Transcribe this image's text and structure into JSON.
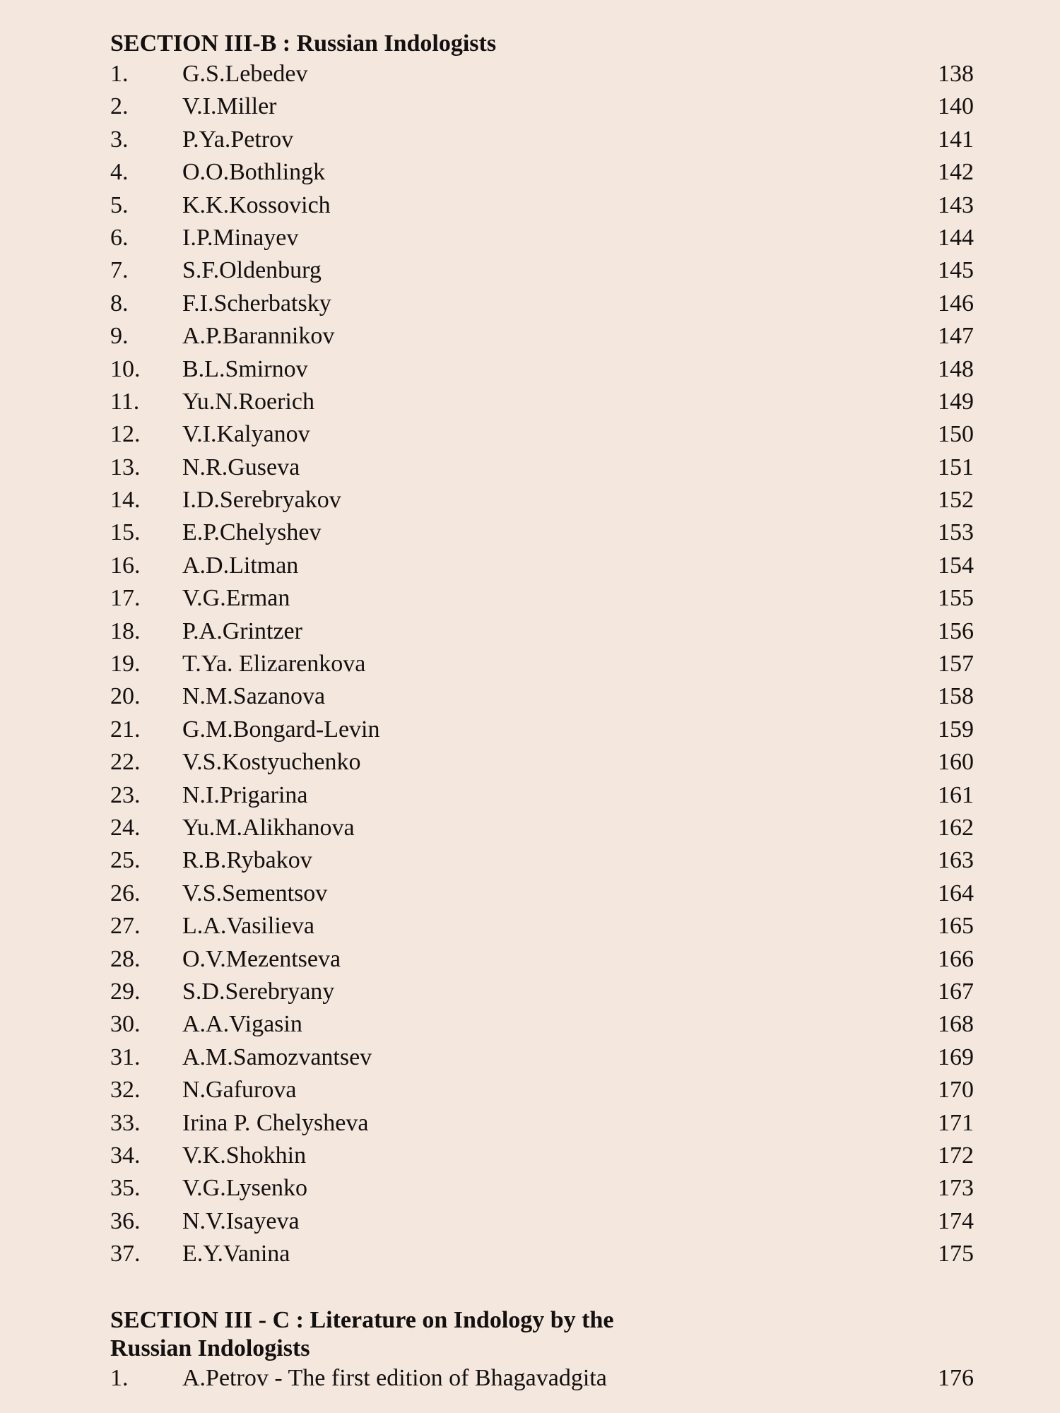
{
  "section_b": {
    "heading": "SECTION III-B : Russian Indologists",
    "items": [
      {
        "num": "1.",
        "name": "G.S.Lebedev",
        "page": "138"
      },
      {
        "num": "2.",
        "name": "V.I.Miller",
        "page": "140"
      },
      {
        "num": "3.",
        "name": "P.Ya.Petrov",
        "page": "141"
      },
      {
        "num": "4.",
        "name": "O.O.Bothlingk",
        "page": "142"
      },
      {
        "num": "5.",
        "name": "K.K.Kossovich",
        "page": "143"
      },
      {
        "num": "6.",
        "name": "I.P.Minayev",
        "page": "144"
      },
      {
        "num": "7.",
        "name": "S.F.Oldenburg",
        "page": "145"
      },
      {
        "num": "8.",
        "name": "F.I.Scherbatsky",
        "page": "146"
      },
      {
        "num": "9.",
        "name": "A.P.Barannikov",
        "page": "147"
      },
      {
        "num": "10.",
        "name": "B.L.Smirnov",
        "page": "148"
      },
      {
        "num": "11.",
        "name": "Yu.N.Roerich",
        "page": "149"
      },
      {
        "num": "12.",
        "name": "V.I.Kalyanov",
        "page": "150"
      },
      {
        "num": "13.",
        "name": "N.R.Guseva",
        "page": "151"
      },
      {
        "num": "14.",
        "name": "I.D.Serebryakov",
        "page": "152"
      },
      {
        "num": "15.",
        "name": "E.P.Chelyshev",
        "page": "153"
      },
      {
        "num": "16.",
        "name": "A.D.Litman",
        "page": "154"
      },
      {
        "num": "17.",
        "name": "V.G.Erman",
        "page": "155"
      },
      {
        "num": "18.",
        "name": "P.A.Grintzer",
        "page": "156"
      },
      {
        "num": "19.",
        "name": "T.Ya. Elizarenkova",
        "page": "157"
      },
      {
        "num": "20.",
        "name": "N.M.Sazanova",
        "page": "158"
      },
      {
        "num": "21.",
        "name": "G.M.Bongard-Levin",
        "page": "159"
      },
      {
        "num": "22.",
        "name": "V.S.Kostyuchenko",
        "page": "160"
      },
      {
        "num": "23.",
        "name": "N.I.Prigarina",
        "page": "161"
      },
      {
        "num": "24.",
        "name": "Yu.M.Alikhanova",
        "page": "162"
      },
      {
        "num": "25.",
        "name": "R.B.Rybakov",
        "page": "163"
      },
      {
        "num": "26.",
        "name": "V.S.Sementsov",
        "page": "164"
      },
      {
        "num": "27.",
        "name": "L.A.Vasilieva",
        "page": "165"
      },
      {
        "num": "28.",
        "name": "O.V.Mezentseva",
        "page": "166"
      },
      {
        "num": "29.",
        "name": "S.D.Serebryany",
        "page": "167"
      },
      {
        "num": "30.",
        "name": "A.A.Vigasin",
        "page": "168"
      },
      {
        "num": "31.",
        "name": "A.M.Samozvantsev",
        "page": "169"
      },
      {
        "num": "32.",
        "name": "N.Gafurova",
        "page": "170"
      },
      {
        "num": "33.",
        "name": "Irina P. Chelysheva",
        "page": "171"
      },
      {
        "num": "34.",
        "name": "V.K.Shokhin",
        "page": "172"
      },
      {
        "num": "35.",
        "name": "V.G.Lysenko",
        "page": "173"
      },
      {
        "num": "36.",
        "name": "N.V.Isayeva",
        "page": "174"
      },
      {
        "num": "37.",
        "name": "E.Y.Vanina",
        "page": "175"
      }
    ]
  },
  "section_c": {
    "heading_line1": "SECTION III - C : Literature on Indology by the",
    "heading_line2": "Russian Indologists",
    "items": [
      {
        "num": "1.",
        "name": "A.Petrov - The first edition of Bhagavadgita",
        "page": "176"
      }
    ]
  }
}
